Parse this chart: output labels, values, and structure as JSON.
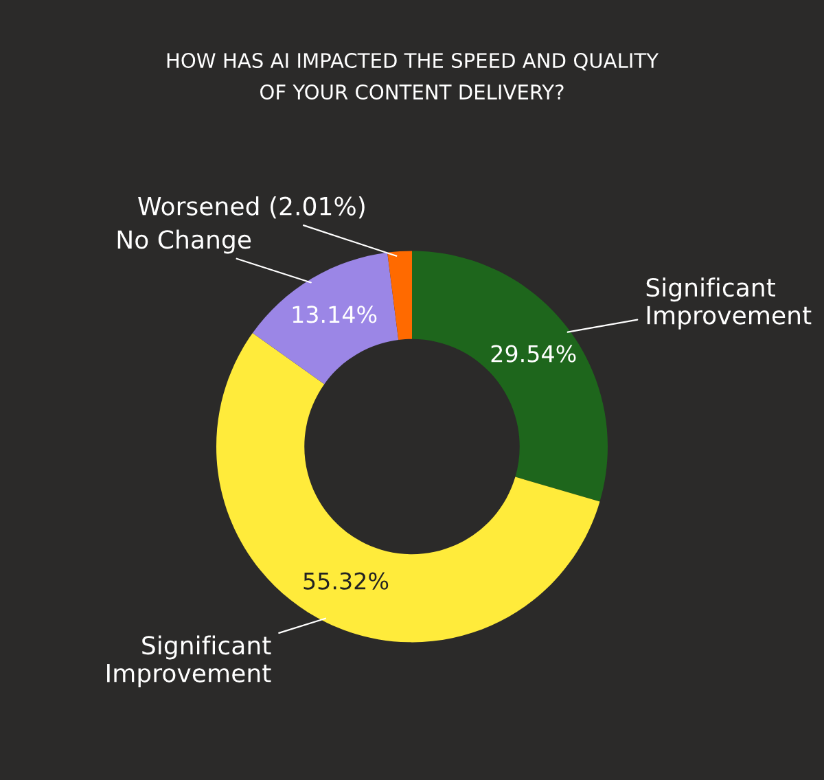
{
  "chart_data": {
    "type": "donut",
    "title": "HOW HAS AI IMPACTED THE SPEED AND QUALITY\nOF YOUR CONTENT DELIVERY?",
    "categories": [
      "Significant\nImprovement",
      "Significant\nImprovement",
      "No Change",
      "Worsened (2.01%)"
    ],
    "values": [
      29.54,
      55.32,
      13.14,
      2.01
    ],
    "colors": [
      "#1e661c",
      "#ffeb3b",
      "#9b86e6",
      "#ff6a00"
    ],
    "value_labels": [
      "29.54%",
      "55.32%",
      "13.14%",
      null
    ]
  }
}
